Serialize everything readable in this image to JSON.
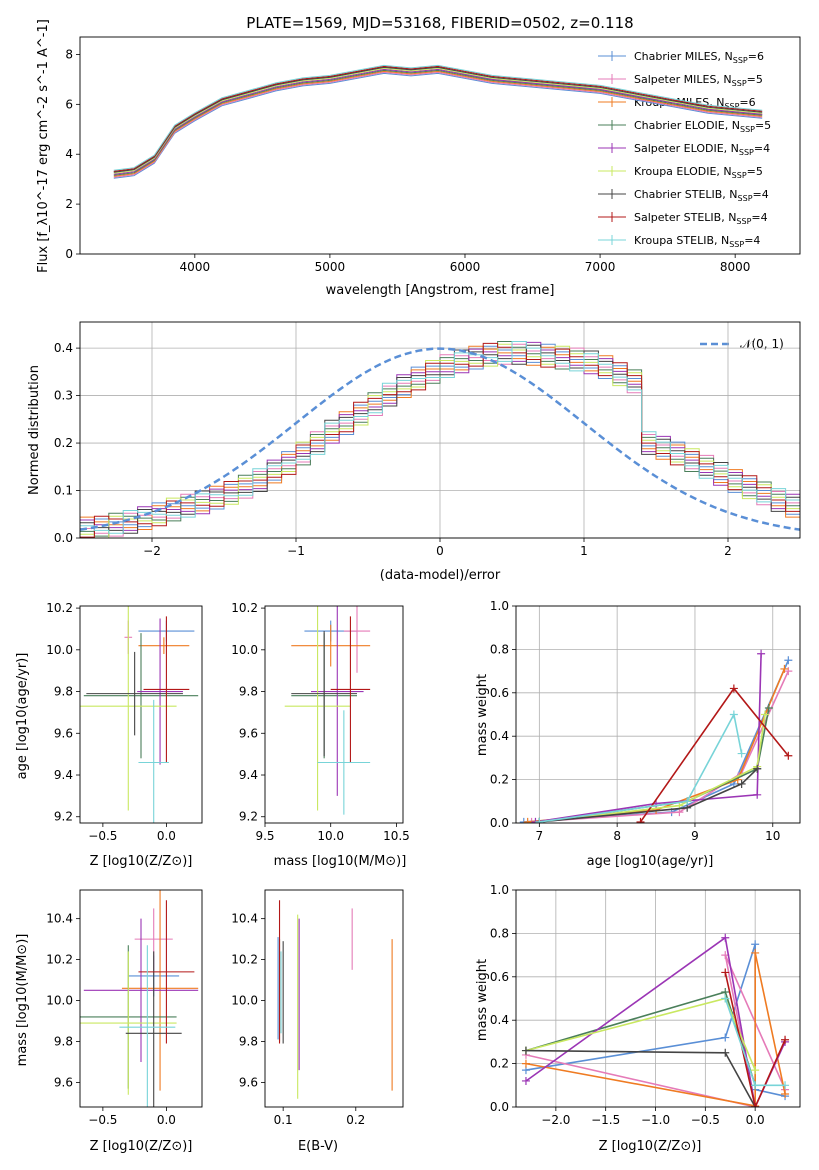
{
  "chart_data": [
    {
      "id": "spectrum",
      "type": "line",
      "title": "PLATE=1569, MJD=53168, FIBERID=0502, z=0.118",
      "xlabel": "wavelength [Angstrom, rest frame]",
      "ylabel": "Flux [f_λ10^-17 erg cm^-2 s^-1 A^-1]",
      "xlim": [
        3150,
        8480
      ],
      "ylim": [
        0,
        8.7
      ],
      "xticks": [
        "4000",
        "5000",
        "6000",
        "7000",
        "8000"
      ],
      "yticks": [
        "0",
        "2",
        "4",
        "6",
        "8"
      ],
      "data_x": [
        3400,
        3550,
        3700,
        3850,
        4000,
        4200,
        4400,
        4600,
        4800,
        5000,
        5200,
        5400,
        5600,
        5800,
        6000,
        6200,
        6400,
        6600,
        6800,
        7000,
        7200,
        7400,
        7600,
        7800,
        8000,
        8200
      ],
      "data_y": [
        3.3,
        3.4,
        3.9,
        5.1,
        5.6,
        6.2,
        6.5,
        6.8,
        7.0,
        7.1,
        7.3,
        7.5,
        7.4,
        7.5,
        7.2,
        7.0,
        6.9,
        6.8,
        6.7,
        6.6,
        6.4,
        6.2,
        6.1,
        5.8,
        5.7,
        5.6
      ],
      "model_x": [
        3400,
        3550,
        3700,
        3850,
        4000,
        4200,
        4400,
        4600,
        4800,
        5000,
        5200,
        5400,
        5600,
        5800,
        6000,
        6200,
        6400,
        6600,
        6800,
        7000,
        7200,
        7400,
        7600,
        7800,
        8000,
        8200
      ],
      "model_y": [
        3.2,
        3.3,
        3.8,
        5.0,
        5.5,
        6.1,
        6.4,
        6.7,
        6.9,
        7.0,
        7.2,
        7.4,
        7.3,
        7.4,
        7.2,
        7.0,
        6.9,
        6.8,
        6.7,
        6.6,
        6.4,
        6.2,
        6.0,
        5.8,
        5.7,
        5.6
      ],
      "legend": [
        {
          "name": "Chabrier MILES, N",
          "sub": "SSP",
          "tail": "=6",
          "color": "#5a8fd6"
        },
        {
          "name": "Salpeter MILES, N",
          "sub": "SSP",
          "tail": "=5",
          "color": "#e57bb8"
        },
        {
          "name": "Kroupa MILES, N",
          "sub": "SSP",
          "tail": "=6",
          "color": "#ef7b22"
        },
        {
          "name": "Chabrier ELODIE, N",
          "sub": "SSP",
          "tail": "=5",
          "color": "#4a7f5a"
        },
        {
          "name": "Salpeter ELODIE, N",
          "sub": "SSP",
          "tail": "=4",
          "color": "#9b35b5"
        },
        {
          "name": "Kroupa ELODIE, N",
          "sub": "SSP",
          "tail": "=5",
          "color": "#c9e860"
        },
        {
          "name": "Chabrier STELIB, N",
          "sub": "SSP",
          "tail": "=4",
          "color": "#444444"
        },
        {
          "name": "Salpeter STELIB, N",
          "sub": "SSP",
          "tail": "=4",
          "color": "#b31818"
        },
        {
          "name": "Kroupa STELIB, N",
          "sub": "SSP",
          "tail": "=4",
          "color": "#78d4d8"
        }
      ],
      "legend_loc": "upper right"
    },
    {
      "id": "residuals",
      "type": "histogram",
      "xlabel": "(data-model)/error",
      "ylabel": "Normed distribution",
      "xlim": [
        -2.5,
        2.5
      ],
      "ylim": [
        0,
        0.455
      ],
      "xticks": [
        "−2",
        "−1",
        "0",
        "1",
        "2"
      ],
      "yticks": [
        "0.0",
        "0.1",
        "0.2",
        "0.3",
        "0.4"
      ],
      "grid": true,
      "bin_width": 0.1,
      "bins_start": -2.5,
      "hist_values": [
        0.02,
        0.022,
        0.028,
        0.034,
        0.042,
        0.05,
        0.06,
        0.068,
        0.075,
        0.085,
        0.095,
        0.108,
        0.122,
        0.14,
        0.158,
        0.178,
        0.2,
        0.224,
        0.242,
        0.262,
        0.282,
        0.302,
        0.32,
        0.336,
        0.35,
        0.362,
        0.372,
        0.38,
        0.386,
        0.39,
        0.39,
        0.388,
        0.384,
        0.38,
        0.376,
        0.37,
        0.36,
        0.345,
        0.33,
        0.2,
        0.19,
        0.178,
        0.164,
        0.15,
        0.135,
        0.12,
        0.107,
        0.094,
        0.08,
        0.068
      ],
      "gauss_label": "𝒩(0, 1)",
      "gauss_color": "#5a8fd6",
      "legend_loc": "upper right"
    },
    {
      "id": "z-age",
      "type": "scatter",
      "xlabel": "Z [log10(Z/Z⊙)]",
      "ylabel": "age  [log10(age/yr)]",
      "xlim": [
        -0.68,
        0.28
      ],
      "ylim": [
        9.17,
        10.21
      ],
      "xticks": [
        "−0.5",
        "0.0"
      ],
      "yticks": [
        "9.2",
        "9.4",
        "9.6",
        "9.8",
        "10.0",
        "10.2"
      ],
      "points": [
        {
          "x": 0.0,
          "y": 10.09,
          "xe": 0.22,
          "ye": 0.05,
          "c": "#5a8fd6"
        },
        {
          "x": -0.3,
          "y": 10.06,
          "xe": 0.03,
          "ye": 0.08,
          "c": "#e57bb8"
        },
        {
          "x": -0.02,
          "y": 10.02,
          "xe": 0.2,
          "ye": 0.04,
          "c": "#ef7b22"
        },
        {
          "x": -0.2,
          "y": 9.78,
          "xe": 0.45,
          "ye": 0.3,
          "c": "#4a7f5a"
        },
        {
          "x": -0.05,
          "y": 9.8,
          "xe": 0.18,
          "ye": 0.35,
          "c": "#9b35b5"
        },
        {
          "x": -0.3,
          "y": 9.73,
          "xe": 0.38,
          "ye": 0.5,
          "c": "#c9e860"
        },
        {
          "x": -0.25,
          "y": 9.79,
          "xe": 0.38,
          "ye": 0.2,
          "c": "#444444"
        },
        {
          "x": 0.0,
          "y": 9.81,
          "xe": 0.18,
          "ye": 0.35,
          "c": "#b31818"
        },
        {
          "x": -0.1,
          "y": 9.46,
          "xe": 0.12,
          "ye": 0.3,
          "c": "#78d4d8"
        }
      ]
    },
    {
      "id": "mass-age",
      "type": "scatter",
      "xlabel": "mass [log10(M/M⊙)]",
      "ylabel": "",
      "xlim": [
        9.5,
        10.55
      ],
      "ylim": [
        9.17,
        10.21
      ],
      "xticks": [
        "9.5",
        "10.0",
        "10.5"
      ],
      "yticks": [
        "9.2",
        "9.4",
        "9.6",
        "9.8",
        "10.0",
        "10.2"
      ],
      "points": [
        {
          "x": 10.0,
          "y": 10.09,
          "xe": 0.2,
          "ye": 0.05,
          "c": "#5a8fd6"
        },
        {
          "x": 10.2,
          "y": 10.09,
          "xe": 0.1,
          "ye": 0.2,
          "c": "#e57bb8"
        },
        {
          "x": 10.0,
          "y": 10.02,
          "xe": 0.3,
          "ye": 0.1,
          "c": "#ef7b22"
        },
        {
          "x": 9.95,
          "y": 9.78,
          "xe": 0.25,
          "ye": 0.3,
          "c": "#4a7f5a"
        },
        {
          "x": 10.05,
          "y": 9.8,
          "xe": 0.2,
          "ye": 0.5,
          "c": "#9b35b5"
        },
        {
          "x": 9.9,
          "y": 9.73,
          "xe": 0.25,
          "ye": 0.5,
          "c": "#c9e860"
        },
        {
          "x": 9.95,
          "y": 9.79,
          "xe": 0.25,
          "ye": 0.3,
          "c": "#444444"
        },
        {
          "x": 10.15,
          "y": 9.81,
          "xe": 0.15,
          "ye": 0.35,
          "c": "#b31818"
        },
        {
          "x": 10.1,
          "y": 9.46,
          "xe": 0.2,
          "ye": 0.25,
          "c": "#78d4d8"
        }
      ]
    },
    {
      "id": "weight-age",
      "type": "line",
      "xlabel": "age  [log10(age/yr)]",
      "ylabel": "mass weight",
      "xlim": [
        6.7,
        10.35
      ],
      "ylim": [
        0,
        1.0
      ],
      "xticks": [
        "7",
        "8",
        "9",
        "10"
      ],
      "yticks": [
        "0.0",
        "0.2",
        "0.4",
        "0.6",
        "0.8",
        "1.0"
      ],
      "grid": true,
      "series": [
        {
          "c": "#5a8fd6",
          "x": [
            6.8,
            8.7,
            9.5,
            10.2
          ],
          "y": [
            0.005,
            0.05,
            0.18,
            0.75
          ]
        },
        {
          "c": "#e57bb8",
          "x": [
            6.9,
            8.8,
            9.6,
            10.2
          ],
          "y": [
            0.005,
            0.05,
            0.23,
            0.7
          ]
        },
        {
          "c": "#ef7b22",
          "x": [
            6.85,
            8.5,
            9.55,
            10.15
          ],
          "y": [
            0.005,
            0.06,
            0.2,
            0.71
          ]
        },
        {
          "c": "#4a7f5a",
          "x": [
            7.0,
            8.9,
            9.8,
            9.95
          ],
          "y": [
            0.005,
            0.1,
            0.25,
            0.53
          ]
        },
        {
          "c": "#9b35b5",
          "x": [
            6.95,
            8.5,
            9.8,
            9.85
          ],
          "y": [
            0.005,
            0.09,
            0.13,
            0.78
          ]
        },
        {
          "c": "#c9e860",
          "x": [
            7.0,
            8.8,
            9.8,
            9.9
          ],
          "y": [
            0.005,
            0.08,
            0.26,
            0.5
          ]
        },
        {
          "c": "#444444",
          "x": [
            7.0,
            8.9,
            9.6,
            9.8
          ],
          "y": [
            0.005,
            0.07,
            0.18,
            0.25
          ]
        },
        {
          "c": "#b31818",
          "x": [
            8.3,
            9.5,
            10.2
          ],
          "y": [
            0.005,
            0.62,
            0.31
          ]
        },
        {
          "c": "#78d4d8",
          "x": [
            7.0,
            8.9,
            9.5,
            9.6
          ],
          "y": [
            0.005,
            0.1,
            0.5,
            0.32
          ]
        }
      ]
    },
    {
      "id": "z-mass",
      "type": "scatter",
      "xlabel": "Z [log10(Z/Z⊙)]",
      "ylabel": "mass [log10(M/M⊙)]",
      "xlim": [
        -0.68,
        0.28
      ],
      "ylim": [
        9.48,
        10.54
      ],
      "xticks": [
        "−0.5",
        "0.0"
      ],
      "yticks": [
        "9.6",
        "9.8",
        "10.0",
        "10.2",
        "10.4"
      ],
      "points": [
        {
          "x": -0.1,
          "y": 10.12,
          "xe": 0.2,
          "ye": 0.1,
          "c": "#5a8fd6"
        },
        {
          "x": -0.1,
          "y": 10.3,
          "xe": 0.15,
          "ye": 0.15,
          "c": "#e57bb8"
        },
        {
          "x": -0.05,
          "y": 10.06,
          "xe": 0.3,
          "ye": 0.5,
          "c": "#ef7b22"
        },
        {
          "x": -0.3,
          "y": 9.92,
          "xe": 0.38,
          "ye": 0.35,
          "c": "#4a7f5a"
        },
        {
          "x": -0.2,
          "y": 10.05,
          "xe": 0.45,
          "ye": 0.35,
          "c": "#9b35b5"
        },
        {
          "x": -0.3,
          "y": 9.89,
          "xe": 0.38,
          "ye": 0.35,
          "c": "#c9e860"
        },
        {
          "x": -0.1,
          "y": 9.84,
          "xe": 0.22,
          "ye": 0.4,
          "c": "#444444"
        },
        {
          "x": 0.0,
          "y": 10.14,
          "xe": 0.22,
          "ye": 0.35,
          "c": "#b31818"
        },
        {
          "x": -0.15,
          "y": 9.87,
          "xe": 0.22,
          "ye": 0.4,
          "c": "#78d4d8"
        }
      ]
    },
    {
      "id": "ebv-mass",
      "type": "scatter",
      "xlabel": "E(B-V)",
      "ylabel": "",
      "xlim": [
        0.075,
        0.265
      ],
      "ylim": [
        9.48,
        10.54
      ],
      "xticks": [
        "0.1",
        "0.2"
      ],
      "yticks": [
        "9.6",
        "9.8",
        "10.0",
        "10.2",
        "10.4"
      ],
      "points": [
        {
          "x": 0.093,
          "y": 10.06,
          "xe": 0,
          "ye": 0.25,
          "c": "#5a8fd6"
        },
        {
          "x": 0.195,
          "y": 10.3,
          "xe": 0,
          "ye": 0.15,
          "c": "#e57bb8"
        },
        {
          "x": 0.25,
          "y": 9.93,
          "xe": 0,
          "ye": 0.37,
          "c": "#ef7b22"
        },
        {
          "x": 0.095,
          "y": 10.05,
          "xe": 0,
          "ye": 0.25,
          "c": "#4a7f5a"
        },
        {
          "x": 0.122,
          "y": 10.03,
          "xe": 0,
          "ye": 0.37,
          "c": "#9b35b5"
        },
        {
          "x": 0.12,
          "y": 9.97,
          "xe": 0,
          "ye": 0.45,
          "c": "#c9e860"
        },
        {
          "x": 0.1,
          "y": 10.04,
          "xe": 0,
          "ye": 0.25,
          "c": "#444444"
        },
        {
          "x": 0.095,
          "y": 10.14,
          "xe": 0,
          "ye": 0.35,
          "c": "#b31818"
        },
        {
          "x": 0.097,
          "y": 10.04,
          "xe": 0,
          "ye": 0.2,
          "c": "#78d4d8"
        }
      ]
    },
    {
      "id": "weight-z",
      "type": "line",
      "xlabel": "Z [log10(Z/Z⊙)]",
      "ylabel": "mass weight",
      "xlim": [
        -2.4,
        0.45
      ],
      "ylim": [
        0,
        1.0
      ],
      "xticks": [
        "−2.0",
        "−1.5",
        "−1.0",
        "−0.5",
        "0.0"
      ],
      "yticks": [
        "0.0",
        "0.2",
        "0.4",
        "0.6",
        "0.8",
        "1.0"
      ],
      "grid": true,
      "series": [
        {
          "c": "#5a8fd6",
          "x": [
            -2.3,
            -0.3,
            0.0,
            0.0,
            0.3
          ],
          "y": [
            0.17,
            0.32,
            0.75,
            0.08,
            0.05
          ]
        },
        {
          "c": "#e57bb8",
          "x": [
            -2.3,
            0.0,
            -0.3,
            0.3
          ],
          "y": [
            0.24,
            0.0,
            0.7,
            0.08
          ]
        },
        {
          "c": "#ef7b22",
          "x": [
            -2.3,
            0.0,
            0.0,
            0.3
          ],
          "y": [
            0.2,
            0.005,
            0.71,
            0.06
          ]
        },
        {
          "c": "#4a7f5a",
          "x": [
            -2.3,
            -0.3,
            0.0
          ],
          "y": [
            0.26,
            0.53,
            0.1
          ]
        },
        {
          "c": "#9b35b5",
          "x": [
            -2.3,
            -0.3,
            0.0,
            0.3
          ],
          "y": [
            0.12,
            0.78,
            0.0,
            0.3
          ]
        },
        {
          "c": "#c9e860",
          "x": [
            -2.3,
            -0.3,
            0.0
          ],
          "y": [
            0.26,
            0.5,
            0.17
          ]
        },
        {
          "c": "#444444",
          "x": [
            -2.3,
            -0.3,
            0.0
          ],
          "y": [
            0.26,
            0.25,
            0.0
          ]
        },
        {
          "c": "#b31818",
          "x": [
            -0.3,
            0.0,
            0.3
          ],
          "y": [
            0.62,
            0.0,
            0.31
          ]
        },
        {
          "c": "#78d4d8",
          "x": [
            -0.3,
            0.0,
            0.3
          ],
          "y": [
            0.5,
            0.1,
            0.1
          ]
        }
      ]
    }
  ]
}
